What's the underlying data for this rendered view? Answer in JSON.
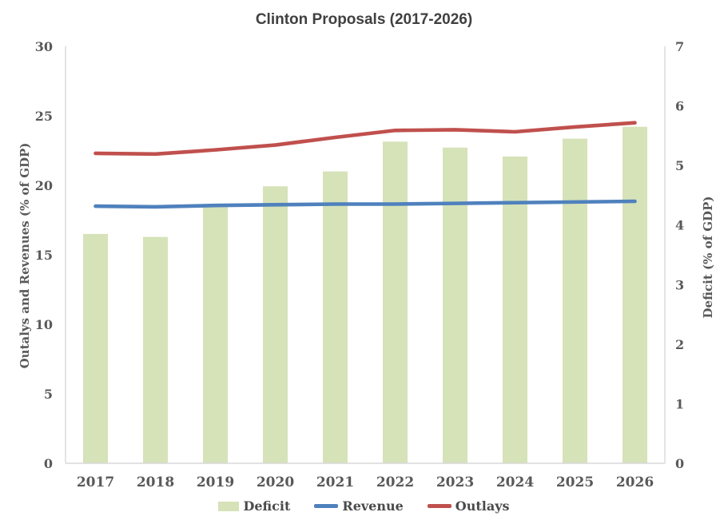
{
  "chart_data": {
    "type": "combo-bar-line",
    "title": "Clinton Proposals (2017-2026)",
    "categories": [
      "2017",
      "2018",
      "2019",
      "2020",
      "2021",
      "2022",
      "2023",
      "2024",
      "2025",
      "2026"
    ],
    "series": [
      {
        "name": "Deficit",
        "chart_type": "bar",
        "axis": "right",
        "color": "#d6e2b8",
        "values": [
          3.85,
          3.8,
          4.3,
          4.65,
          4.9,
          5.4,
          5.3,
          5.15,
          5.45,
          5.65
        ]
      },
      {
        "name": "Revenue",
        "chart_type": "line",
        "axis": "left",
        "color": "#4f81bd",
        "values": [
          18.5,
          18.45,
          18.55,
          18.6,
          18.65,
          18.65,
          18.7,
          18.75,
          18.8,
          18.85
        ]
      },
      {
        "name": "Outlays",
        "chart_type": "line",
        "axis": "left",
        "color": "#c0504d",
        "values": [
          22.3,
          22.25,
          22.55,
          22.9,
          23.45,
          23.95,
          24.0,
          23.85,
          24.2,
          24.5
        ]
      }
    ],
    "left_axis": {
      "label": "Outalys and Revenues (% of GDP)",
      "min": 0,
      "max": 30,
      "ticks": [
        0,
        5,
        10,
        15,
        20,
        25,
        30
      ]
    },
    "right_axis": {
      "label": "Deficit (% of GDP)",
      "min": 0,
      "max": 7,
      "ticks": [
        0,
        1,
        2,
        3,
        4,
        5,
        6,
        7
      ]
    },
    "legend": {
      "position": "bottom",
      "entries": [
        "Deficit",
        "Revenue",
        "Outlays"
      ]
    },
    "grid": "off",
    "axis_line_color": "#d9d9d9",
    "tick_text_color": "#595959",
    "title_color": "#404040"
  }
}
